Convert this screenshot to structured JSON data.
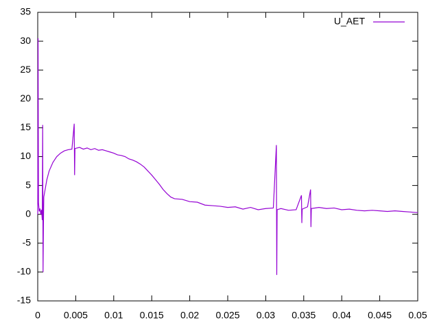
{
  "chart_data": {
    "type": "line",
    "x": [
      0,
      5e-05,
      0.0001,
      0.0002,
      0.0003,
      0.0004,
      0.0005,
      0.0006,
      0.00065,
      0.0007,
      0.00075,
      0.0008,
      0.001,
      0.0012,
      0.0015,
      0.002,
      0.0025,
      0.003,
      0.0035,
      0.004,
      0.0045,
      0.0048,
      0.00485,
      0.0049,
      0.0055,
      0.006,
      0.0065,
      0.007,
      0.0075,
      0.008,
      0.0085,
      0.009,
      0.0095,
      0.01,
      0.0105,
      0.011,
      0.0115,
      0.012,
      0.0125,
      0.013,
      0.0135,
      0.014,
      0.0145,
      0.015,
      0.0155,
      0.016,
      0.0165,
      0.017,
      0.0175,
      0.018,
      0.019,
      0.02,
      0.021,
      0.022,
      0.023,
      0.024,
      0.025,
      0.026,
      0.027,
      0.028,
      0.029,
      0.03,
      0.031,
      0.0314,
      0.03145,
      0.0315,
      0.032,
      0.033,
      0.034,
      0.0347,
      0.03475,
      0.0348,
      0.0355,
      0.0359,
      0.03595,
      0.036,
      0.037,
      0.038,
      0.039,
      0.04,
      0.041,
      0.042,
      0.043,
      0.044,
      0.045,
      0.046,
      0.047,
      0.048,
      0.049,
      0.05
    ],
    "series": [
      {
        "name": "U_AET",
        "color": "#9400d3",
        "values": [
          0,
          30.5,
          2,
          0.5,
          1,
          0,
          0.8,
          -1,
          15.5,
          -10,
          -2,
          3,
          4.5,
          6,
          7.5,
          9,
          10,
          10.6,
          11,
          11.2,
          11.3,
          15.7,
          6.8,
          11.4,
          11.6,
          11.3,
          11.5,
          11.2,
          11.4,
          11.1,
          11.2,
          11,
          10.8,
          10.6,
          10.3,
          10.2,
          10,
          9.6,
          9.4,
          9.1,
          8.7,
          8.2,
          7.5,
          6.8,
          6,
          5.2,
          4.3,
          3.6,
          3,
          2.7,
          2.6,
          2.2,
          2.1,
          1.6,
          1.5,
          1.4,
          1.2,
          1.3,
          0.9,
          1.2,
          0.8,
          1.0,
          1.1,
          12,
          -10.5,
          0.8,
          1,
          0.7,
          0.8,
          3.3,
          -1.5,
          0.9,
          1.3,
          4.3,
          -2.2,
          1,
          1.2,
          1,
          1.1,
          0.8,
          0.9,
          0.7,
          0.6,
          0.7,
          0.6,
          0.5,
          0.6,
          0.5,
          0.4,
          0.3
        ]
      }
    ],
    "xlim": [
      0,
      0.05
    ],
    "xticks": [
      0,
      0.005,
      0.01,
      0.015,
      0.02,
      0.025,
      0.03,
      0.035,
      0.04,
      0.045,
      0.05
    ],
    "ylim": [
      -15,
      35
    ],
    "yticks": [
      -15,
      -10,
      -5,
      0,
      5,
      10,
      15,
      20,
      25,
      30,
      35
    ],
    "legend": "top-right"
  }
}
